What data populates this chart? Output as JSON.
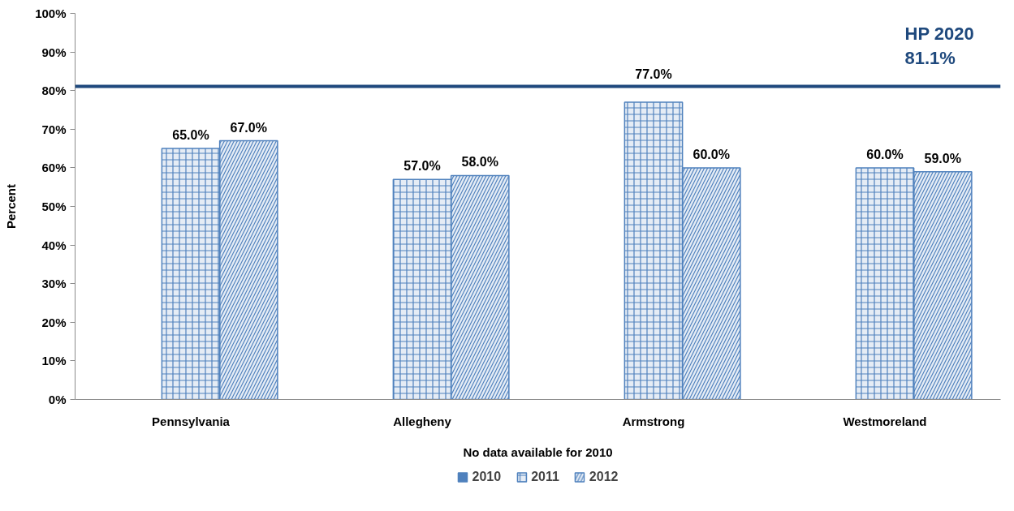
{
  "chart_data": {
    "type": "bar",
    "xlabel": "No data available for 2010",
    "ylabel": "Percent",
    "categories": [
      "Pennsylvania",
      "Allegheny",
      "Armstrong",
      "Westmoreland"
    ],
    "series": [
      {
        "name": "2010",
        "color": "#4f81bd",
        "values": [
          null,
          null,
          null,
          null
        ]
      },
      {
        "name": "2011",
        "color": "#4f81bd",
        "values": [
          65,
          57,
          77,
          60
        ],
        "value_labels": [
          "65.0%",
          "57.0%",
          "77.0%",
          "60.0%"
        ]
      },
      {
        "name": "2012",
        "color": "#4f81bd",
        "values": [
          67,
          58,
          60,
          59
        ],
        "value_labels": [
          "67.0%",
          "58.0%",
          "60.0%",
          "59.0%"
        ]
      }
    ],
    "ylim": [
      0,
      100
    ],
    "yticks": [
      {
        "value": 0,
        "label": "0%"
      },
      {
        "value": 10,
        "label": "10%"
      },
      {
        "value": 20,
        "label": "20%"
      },
      {
        "value": 30,
        "label": "30%"
      },
      {
        "value": 40,
        "label": "40%"
      },
      {
        "value": 50,
        "label": "50%"
      },
      {
        "value": 60,
        "label": "60%"
      },
      {
        "value": 70,
        "label": "70%"
      },
      {
        "value": 80,
        "label": "80%"
      },
      {
        "value": 90,
        "label": "90%"
      },
      {
        "value": 100,
        "label": "100%"
      }
    ],
    "ref_lines": [
      {
        "axis": "y",
        "value": 81.1,
        "label": "HP 2020\n81.1%",
        "color": "#1f497d"
      }
    ],
    "legend": "bottom"
  }
}
